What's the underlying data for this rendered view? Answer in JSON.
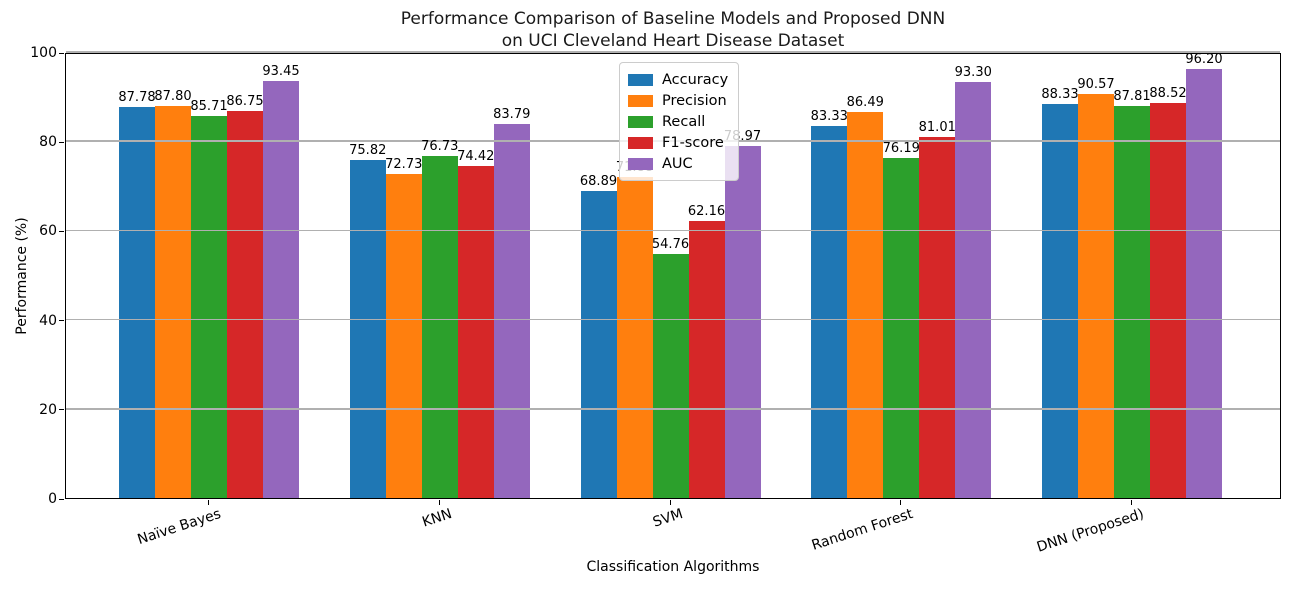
{
  "title": "Performance Comparison of Baseline Models and Proposed DNN\non UCI Cleveland Heart Disease Dataset",
  "chart_data": {
    "type": "bar",
    "title": "Performance Comparison of Baseline Models and Proposed DNN on UCI Cleveland Heart Disease Dataset",
    "xlabel": "Classification Algorithms",
    "ylabel": "Performance (%)",
    "ylim": [
      0,
      100
    ],
    "yticks": [
      0,
      20,
      40,
      60,
      80,
      100
    ],
    "grid": true,
    "grid_over_bars": true,
    "legend_position": "upper center",
    "bar_value_labels": true,
    "categories": [
      "Naïve Bayes",
      "KNN",
      "SVM",
      "Random Forest",
      "DNN (Proposed)"
    ],
    "series": [
      {
        "name": "Accuracy",
        "color": "#1f77b4",
        "values": [
          87.78,
          75.82,
          68.89,
          83.33,
          88.33
        ]
      },
      {
        "name": "Precision",
        "color": "#ff7f0e",
        "values": [
          87.8,
          72.73,
          71.88,
          86.49,
          90.57
        ]
      },
      {
        "name": "Recall",
        "color": "#2ca02c",
        "values": [
          85.71,
          76.73,
          54.76,
          76.19,
          87.81
        ]
      },
      {
        "name": "F1-score",
        "color": "#d62728",
        "values": [
          86.75,
          74.42,
          62.16,
          81.01,
          88.52
        ]
      },
      {
        "name": "AUC",
        "color": "#9467bd",
        "values": [
          93.45,
          83.79,
          78.97,
          93.3,
          96.2
        ]
      }
    ]
  }
}
